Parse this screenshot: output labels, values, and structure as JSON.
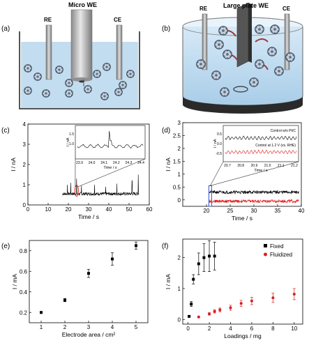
{
  "panels": {
    "a": {
      "label": "(a)",
      "we_label": "Micro WE",
      "re_label": "RE",
      "ce_label": "CE"
    },
    "b": {
      "label": "(b)",
      "we_label": "Large plate WE",
      "re_label": "RE",
      "ce_label": "CE"
    },
    "c": {
      "label": "(c)",
      "inset_ylabel": "I / nA",
      "inset_xlabel": "Time / s",
      "inset_xticks": [
        "23.9",
        "24.0",
        "24.1",
        "24.2",
        "24.3",
        "24.4"
      ],
      "inset_yticks": [
        "1.5",
        "1.0"
      ]
    },
    "d": {
      "label": "(d)",
      "inset_ylabel": "I / nA",
      "inset_xlabel": "Time / s",
      "inset_xticks": [
        "20.7",
        "20.8",
        "20.9",
        "21.0",
        "21.1",
        "21.2"
      ],
      "inset_yticks": [
        "0.5",
        "0.0",
        "-0.5"
      ],
      "legend_black": "Control w/o Pt/C",
      "legend_red": "Control at 1.2 V (vs. RHE)"
    },
    "e": {
      "label": "(e)"
    },
    "f": {
      "label": "(f)"
    }
  },
  "chart_data": [
    {
      "type": "line",
      "id": "c",
      "xlabel": "Time / s",
      "ylabel": "I / nA",
      "xlim": [
        0,
        60
      ],
      "ylim": [
        0,
        4
      ],
      "xticks": [
        0,
        10,
        20,
        30,
        40,
        50,
        60
      ],
      "yticks": [
        0,
        1,
        2,
        3,
        4
      ],
      "series": [
        {
          "color": "#000000",
          "x_range": [
            17,
            55
          ],
          "baseline": 0.55,
          "noise": 0.08,
          "spikes": [
            [
              19.5,
              1.0
            ],
            [
              21.2,
              1.1
            ],
            [
              24.1,
              1.3
            ],
            [
              26.5,
              0.95
            ],
            [
              33.0,
              1.0
            ],
            [
              38.5,
              0.9
            ],
            [
              44.0,
              1.05
            ],
            [
              51.5,
              1.2
            ],
            [
              54.6,
              1.5
            ]
          ]
        }
      ],
      "highlight": {
        "x": 24.1,
        "color": "#d62020"
      }
    },
    {
      "type": "line",
      "id": "d",
      "xlabel": "Time / s",
      "ylabel": "I / nA",
      "xlim": [
        15,
        40
      ],
      "ylim": [
        -0.25,
        3
      ],
      "xticks": [
        20,
        25,
        30,
        35,
        40
      ],
      "yticks": [
        0,
        0.5,
        1,
        1.5,
        2,
        2.5,
        3
      ],
      "series": [
        {
          "name": "Control w/o Pt/C",
          "color": "#000000",
          "x_range": [
            20.5,
            39.5
          ],
          "baseline": 0.3,
          "noise": 0.06
        },
        {
          "name": "Control at 1.2 V (vs. RHE)",
          "color": "#e01818",
          "x_range": [
            20.5,
            39.5
          ],
          "baseline": -0.05,
          "noise": 0.06
        }
      ],
      "highlight": {
        "x": 20.8,
        "color": "#3355cc"
      }
    },
    {
      "type": "scatter",
      "id": "e",
      "xlabel": "Electrode area / cm²",
      "ylabel": "I / mA",
      "xlim": [
        0.5,
        5.5
      ],
      "ylim": [
        0.1,
        0.9
      ],
      "xticks": [
        1,
        2,
        3,
        4,
        5
      ],
      "yticks": [
        0.2,
        0.4,
        0.6,
        0.8
      ],
      "series": [
        {
          "color": "#000000",
          "x": [
            1,
            2,
            3,
            4,
            5
          ],
          "y": [
            0.2,
            0.32,
            0.58,
            0.72,
            0.85
          ],
          "err": [
            0.01,
            0.015,
            0.04,
            0.06,
            0.035
          ]
        }
      ]
    },
    {
      "type": "scatter",
      "id": "f",
      "xlabel": "Loadings / mg",
      "ylabel": "I / mA",
      "xlim": [
        -0.5,
        10.8
      ],
      "ylim": [
        -0.15,
        2.6
      ],
      "xticks": [
        0,
        2,
        4,
        6,
        8,
        10
      ],
      "yticks": [
        0,
        1,
        2
      ],
      "series": [
        {
          "name": "Fixed",
          "color": "#000000",
          "x": [
            0.1,
            0.3,
            0.5,
            1.0,
            1.5,
            2.0,
            2.5
          ],
          "y": [
            0.1,
            0.5,
            1.3,
            1.8,
            2.0,
            2.05,
            2.05
          ],
          "err": [
            0.02,
            0.08,
            0.15,
            0.35,
            0.45,
            0.5,
            0.45
          ]
        },
        {
          "name": "Fluidized",
          "color": "#d62020",
          "x": [
            1.0,
            2.0,
            2.5,
            3.0,
            4.0,
            5.0,
            6.0,
            8.0,
            10.0
          ],
          "y": [
            0.08,
            0.18,
            0.26,
            0.31,
            0.38,
            0.52,
            0.6,
            0.7,
            0.82
          ],
          "err": [
            0.02,
            0.04,
            0.05,
            0.06,
            0.08,
            0.1,
            0.12,
            0.15,
            0.18
          ]
        }
      ],
      "legend_position": "top-right"
    }
  ]
}
